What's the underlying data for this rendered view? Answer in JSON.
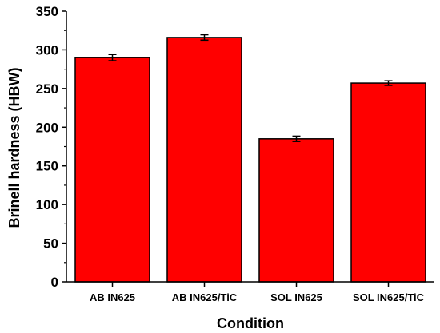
{
  "chart_data": {
    "type": "bar",
    "title": "",
    "xlabel": "Condition",
    "ylabel": "Brinell hardness (HBW)",
    "categories": [
      "AB IN625",
      "AB IN625/TiC",
      "SOL IN625",
      "SOL IN625/TiC"
    ],
    "values": [
      290,
      316,
      185,
      257
    ],
    "errors": [
      4,
      3.5,
      3.5,
      3
    ],
    "ylim": [
      0,
      350
    ],
    "yticks": [
      "0",
      "50",
      "100",
      "150",
      "200",
      "250",
      "300",
      "350"
    ],
    "grid": false,
    "legend": "none",
    "bar_color": "#ff0000",
    "edge_color": "#000000"
  }
}
